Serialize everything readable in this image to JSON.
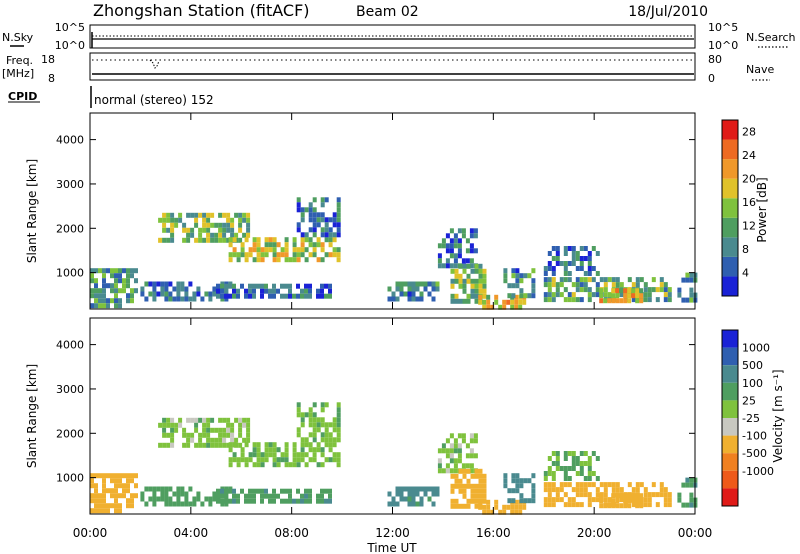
{
  "header": {
    "title": "Zhongshan Station (fitACF)",
    "beam": "Beam 02",
    "date": "18/Jul/2010"
  },
  "top_panels": {
    "nsky_label": "N.Sky",
    "nsky_ticks": [
      "10^5",
      "10^0"
    ],
    "nsearch_label": "N.Search",
    "nsearch_ticks": [
      "10^5",
      "10^0"
    ],
    "freq_label": "Freq.",
    "freq_unit": "[MHz]",
    "freq_ticks": [
      "18",
      "8"
    ],
    "nave_label": "Nave",
    "nave_ticks": [
      "80",
      "0"
    ],
    "cpid_label": "CPID",
    "mode_text": "normal (stereo) 152"
  },
  "colors": {
    "power_scale": [
      "#1a22d6",
      "#2f5fb0",
      "#4a8a8f",
      "#4f9e60",
      "#7fc23d",
      "#e0c22a",
      "#f0982a",
      "#ee6a22",
      "#e01b18"
    ],
    "velocity_scale": [
      "#1a22d6",
      "#2f5fb0",
      "#4a8a8f",
      "#4f9e60",
      "#7fc23d",
      "#c8c8c0",
      "#f0b030",
      "#f08020",
      "#ee5a1a",
      "#e01b18"
    ]
  },
  "chart_data": [
    {
      "type": "heatmap",
      "name": "power-panel",
      "ylabel": "Slant Range [km]",
      "xlabel": "Time UT",
      "x_ticks": [
        "00:00",
        "04:00",
        "08:00",
        "12:00",
        "16:00",
        "20:00",
        "00:00"
      ],
      "xlim_hours": [
        0,
        24
      ],
      "y_ticks": [
        "1000",
        "2000",
        "3000",
        "4000"
      ],
      "ylim": [
        180,
        4600
      ],
      "colorbar_label": "Power [dB]",
      "colorbar_ticks": [
        "4",
        "8",
        "12",
        "16",
        "20",
        "24",
        "28"
      ],
      "colorbar_range": [
        0,
        30
      ],
      "regions": [
        {
          "t0": 0.0,
          "t1": 1.8,
          "r0": 300,
          "r1": 1100,
          "v": 10
        },
        {
          "t0": 2.0,
          "t1": 5.5,
          "r0": 400,
          "r1": 800,
          "v": 6
        },
        {
          "t0": 2.7,
          "t1": 6.2,
          "r0": 1750,
          "r1": 2350,
          "v": 14
        },
        {
          "t0": 5.5,
          "t1": 9.8,
          "r0": 1250,
          "r1": 1800,
          "v": 16
        },
        {
          "t0": 8.2,
          "t1": 9.9,
          "r0": 1900,
          "r1": 2700,
          "v": 7
        },
        {
          "t0": 5.0,
          "t1": 9.5,
          "r0": 450,
          "r1": 750,
          "v": 6
        },
        {
          "t0": 11.8,
          "t1": 13.8,
          "r0": 400,
          "r1": 800,
          "v": 8
        },
        {
          "t0": 13.8,
          "t1": 15.3,
          "r0": 1100,
          "r1": 2000,
          "v": 7
        },
        {
          "t0": 14.3,
          "t1": 15.6,
          "r0": 350,
          "r1": 1200,
          "v": 14
        },
        {
          "t0": 15.4,
          "t1": 17.2,
          "r0": 200,
          "r1": 500,
          "v": 18
        },
        {
          "t0": 16.4,
          "t1": 17.6,
          "r0": 500,
          "r1": 1100,
          "v": 9
        },
        {
          "t0": 18.0,
          "t1": 20.2,
          "r0": 1000,
          "r1": 1600,
          "v": 6
        },
        {
          "t0": 18.0,
          "t1": 23.0,
          "r0": 350,
          "r1": 900,
          "v": 12
        },
        {
          "t0": 20.2,
          "t1": 21.8,
          "r0": 350,
          "r1": 650,
          "v": 19
        },
        {
          "t0": 23.3,
          "t1": 24.0,
          "r0": 400,
          "r1": 1000,
          "v": 10
        }
      ]
    },
    {
      "type": "heatmap",
      "name": "velocity-panel",
      "ylabel": "Slant Range [km]",
      "xlabel": "Time UT",
      "x_ticks": [
        "00:00",
        "04:00",
        "08:00",
        "12:00",
        "16:00",
        "20:00",
        "00:00"
      ],
      "xlim_hours": [
        0,
        24
      ],
      "y_ticks": [
        "1000",
        "2000",
        "3000",
        "4000"
      ],
      "ylim": [
        180,
        4600
      ],
      "colorbar_label": "Velocity [m s⁻¹]",
      "colorbar_ticks": [
        "1000",
        "500",
        "100",
        "25",
        "-25",
        "-100",
        "-500",
        "-1000"
      ],
      "regions": [
        {
          "t0": 0.0,
          "t1": 1.8,
          "r0": 300,
          "r1": 1100,
          "v": -150
        },
        {
          "t0": 2.0,
          "t1": 5.5,
          "r0": 400,
          "r1": 800,
          "v": 60
        },
        {
          "t0": 2.7,
          "t1": 6.2,
          "r0": 1750,
          "r1": 2350,
          "v": 0
        },
        {
          "t0": 5.5,
          "t1": 9.8,
          "r0": 1250,
          "r1": 1800,
          "v": 5
        },
        {
          "t0": 8.2,
          "t1": 9.9,
          "r0": 1900,
          "r1": 2700,
          "v": 10
        },
        {
          "t0": 5.0,
          "t1": 9.5,
          "r0": 450,
          "r1": 750,
          "v": 80
        },
        {
          "t0": 11.8,
          "t1": 13.8,
          "r0": 400,
          "r1": 800,
          "v": 120
        },
        {
          "t0": 13.8,
          "t1": 15.3,
          "r0": 1100,
          "r1": 2000,
          "v": 0
        },
        {
          "t0": 14.3,
          "t1": 15.6,
          "r0": 350,
          "r1": 1200,
          "v": -200
        },
        {
          "t0": 15.4,
          "t1": 17.2,
          "r0": 200,
          "r1": 500,
          "v": -300
        },
        {
          "t0": 16.4,
          "t1": 17.6,
          "r0": 500,
          "r1": 1100,
          "v": 150
        },
        {
          "t0": 18.0,
          "t1": 20.2,
          "r0": 1000,
          "r1": 1600,
          "v": 30
        },
        {
          "t0": 18.0,
          "t1": 23.0,
          "r0": 350,
          "r1": 900,
          "v": -250
        },
        {
          "t0": 20.2,
          "t1": 21.8,
          "r0": 350,
          "r1": 650,
          "v": -400
        },
        {
          "t0": 23.3,
          "t1": 24.0,
          "r0": 400,
          "r1": 1000,
          "v": 90
        }
      ]
    }
  ]
}
